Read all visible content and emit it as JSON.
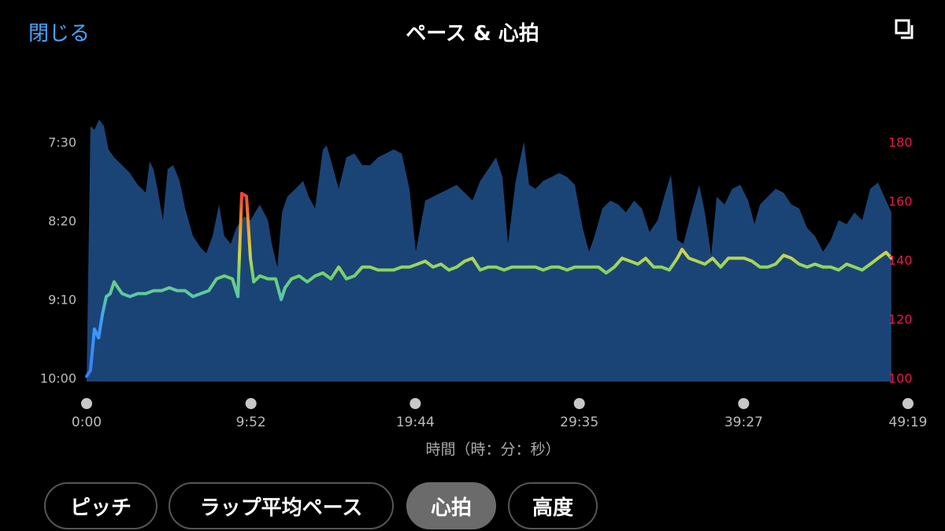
{
  "header": {
    "close": "閉じる",
    "title": "ペース & 心拍"
  },
  "chart_data": {
    "type": "area_line",
    "xlabel": "時間（時：分：秒）",
    "xlim": [
      0,
      2959
    ],
    "xticks": [
      {
        "value": 0,
        "label": "0:00"
      },
      {
        "value": 592,
        "label": "9:52"
      },
      {
        "value": 1184,
        "label": "19:44"
      },
      {
        "value": 1775,
        "label": "29:35"
      },
      {
        "value": 2367,
        "label": "39:27"
      },
      {
        "value": 2959,
        "label": "49:19"
      }
    ],
    "ylim": [
      600,
      435
    ],
    "yticks": [
      {
        "value": 450,
        "label": "7:30"
      },
      {
        "value": 500,
        "label": "8:20"
      },
      {
        "value": 550,
        "label": "9:10"
      },
      {
        "value": 600,
        "label": "10:00"
      }
    ],
    "y2lim": [
      100,
      188
    ],
    "y2ticks": [
      100,
      120,
      140,
      160,
      180
    ],
    "y2color": "#e8174a",
    "series": [
      {
        "name": "ペース",
        "color": "#1b4476",
        "axis": "y",
        "x": [
          0,
          14,
          28,
          45,
          62,
          79,
          99,
          128,
          156,
          184,
          213,
          227,
          241,
          255,
          275,
          292,
          312,
          335,
          355,
          383,
          411,
          431,
          454,
          477,
          496,
          519,
          539,
          567,
          590,
          624,
          653,
          667,
          687,
          704,
          723,
          752,
          780,
          800,
          823,
          851,
          865,
          885,
          908,
          936,
          965,
          993,
          1021,
          1050,
          1078,
          1106,
          1135,
          1163,
          1186,
          1220,
          1248,
          1277,
          1305,
          1333,
          1362,
          1390,
          1418,
          1447,
          1475,
          1498,
          1518,
          1546,
          1575,
          1594,
          1617,
          1645,
          1674,
          1702,
          1731,
          1759,
          1787,
          1810,
          1830,
          1858,
          1887,
          1915,
          1943,
          1972,
          2000,
          2028,
          2057,
          2085,
          2105,
          2128,
          2150,
          2179,
          2207,
          2227,
          2250,
          2270,
          2298,
          2326,
          2355,
          2383,
          2406,
          2426,
          2454,
          2482,
          2511,
          2539,
          2567,
          2596,
          2624,
          2653,
          2681,
          2709,
          2738,
          2766,
          2794,
          2823,
          2851,
          2880,
          2899
        ],
        "values": [
          600,
          439,
          441.5,
          435,
          439,
          454,
          459,
          464,
          469,
          476.5,
          481.5,
          461.5,
          466.5,
          479,
          499,
          466.5,
          464,
          474,
          491.5,
          509,
          516.5,
          520,
          509,
          489,
          509,
          514,
          504,
          496.5,
          499,
          489,
          499,
          514,
          529,
          494,
          484,
          479,
          474,
          484,
          491.5,
          454,
          451.5,
          464,
          479,
          459,
          456.5,
          464,
          464,
          459,
          456.5,
          454,
          456.5,
          479,
          519,
          486.5,
          484,
          481.5,
          479,
          476.5,
          481.5,
          486.5,
          474,
          466.5,
          459,
          471.5,
          514,
          474,
          449,
          476.5,
          479,
          474,
          471.5,
          469,
          471.5,
          476.5,
          504,
          519,
          509,
          491.5,
          486.5,
          489,
          494,
          486.5,
          491.5,
          506.5,
          499,
          481.5,
          470,
          511.5,
          514,
          494,
          476.5,
          494,
          521.5,
          484,
          489,
          479,
          476.5,
          486.5,
          501.5,
          489,
          484,
          479,
          481.5,
          489,
          491.5,
          504,
          509,
          519,
          511.5,
          499,
          501.5,
          494,
          499,
          479,
          475,
          486.5,
          494
        ]
      },
      {
        "name": "心拍",
        "color": "#6fd36b",
        "axis": "y2",
        "x": [
          0,
          14,
          28,
          43,
          57,
          71,
          85,
          99,
          113,
          128,
          156,
          184,
          213,
          241,
          270,
          298,
          326,
          355,
          383,
          411,
          440,
          468,
          496,
          525,
          545,
          559,
          576,
          590,
          602,
          624,
          653,
          681,
          701,
          715,
          738,
          766,
          795,
          823,
          851,
          880,
          908,
          936,
          965,
          993,
          1021,
          1050,
          1078,
          1106,
          1135,
          1163,
          1192,
          1220,
          1248,
          1277,
          1305,
          1333,
          1362,
          1390,
          1418,
          1447,
          1475,
          1504,
          1532,
          1560,
          1589,
          1617,
          1645,
          1674,
          1702,
          1731,
          1759,
          1787,
          1816,
          1844,
          1872,
          1901,
          1929,
          1958,
          1986,
          2014,
          2043,
          2071,
          2099,
          2128,
          2145,
          2170,
          2199,
          2227,
          2255,
          2284,
          2312,
          2341,
          2369,
          2397,
          2426,
          2454,
          2482,
          2511,
          2539,
          2567,
          2596,
          2624,
          2653,
          2681,
          2709,
          2738,
          2766,
          2794,
          2823,
          2851,
          2880,
          2899
        ],
        "values": [
          101,
          103,
          117,
          114,
          122,
          128,
          129,
          133,
          131,
          129,
          128,
          129,
          129,
          130,
          130,
          131,
          130,
          130,
          128,
          129,
          130,
          134,
          135,
          134,
          128,
          163,
          162,
          141,
          133,
          135,
          134,
          134,
          127,
          131,
          134,
          135,
          133,
          135,
          136,
          134,
          138,
          134,
          135,
          138,
          138,
          137,
          137,
          137,
          138,
          138,
          139,
          140,
          138,
          139,
          137,
          138,
          140,
          141,
          137,
          138,
          138,
          137,
          138,
          138,
          138,
          138,
          137,
          138,
          138,
          137,
          138,
          138,
          138,
          138,
          136,
          138,
          141,
          140,
          139,
          141,
          138,
          138,
          137,
          141,
          144,
          141,
          140,
          139,
          141,
          138,
          141,
          141,
          141,
          140,
          138,
          138,
          139,
          142,
          141,
          139,
          138,
          139,
          138,
          138,
          137,
          139,
          138,
          137,
          139,
          141,
          143,
          141
        ]
      }
    ]
  },
  "buttons": [
    "ピッチ",
    "ラップ平均ペース",
    "心拍",
    "高度"
  ],
  "selected_button": 2
}
